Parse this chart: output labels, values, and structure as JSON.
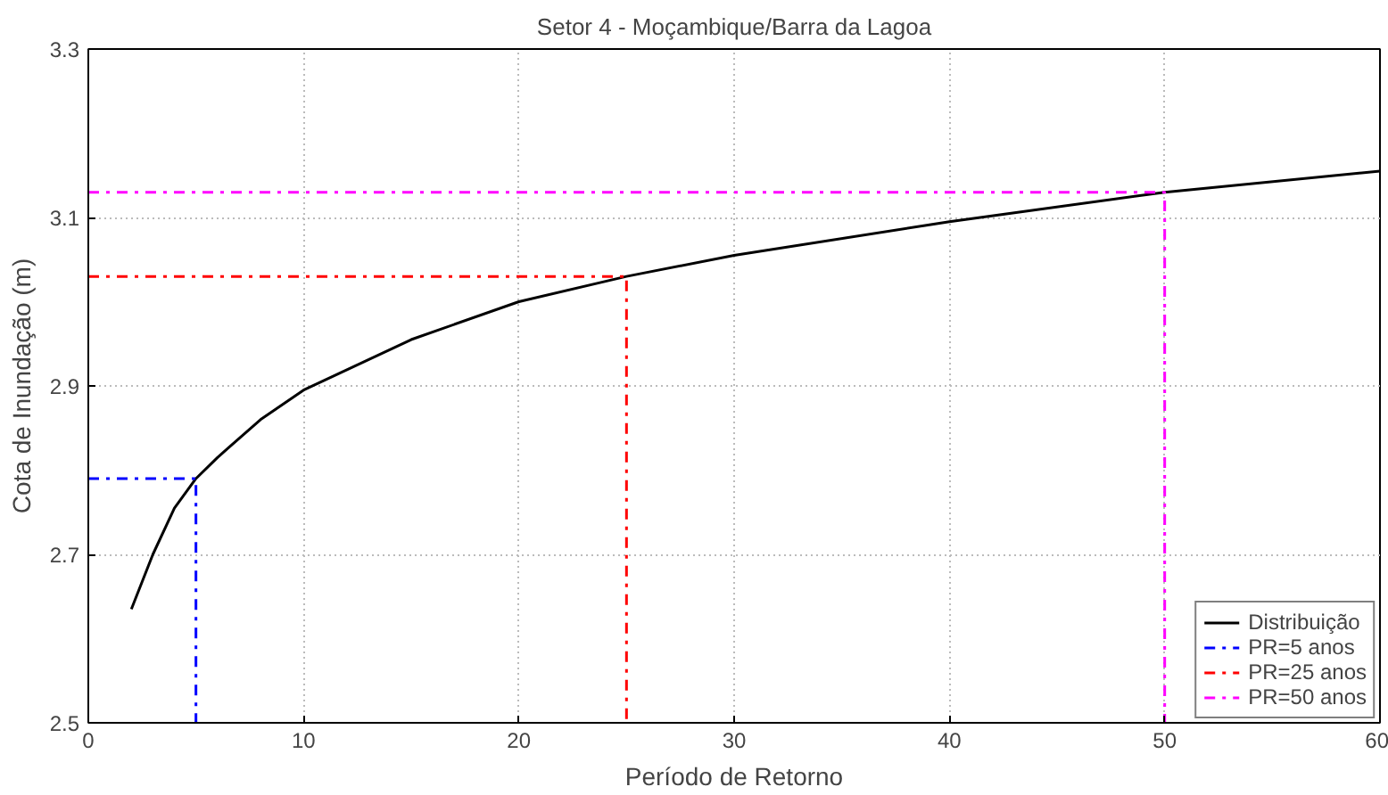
{
  "chart_data": {
    "type": "line",
    "title": "Setor 4 - Moçambique/Barra da Lagoa",
    "xlabel": "Período de Retorno",
    "ylabel": "Cota de Inundação (m)",
    "xlim": [
      0,
      60
    ],
    "xticks": [
      0,
      10,
      20,
      30,
      40,
      50,
      60
    ],
    "ylim": [
      2.5,
      3.3
    ],
    "yticks": [
      2.5,
      2.7,
      2.9,
      3.1,
      3.3
    ],
    "grid": true,
    "legend": "bottom right",
    "series": [
      {
        "name": "Distribuição",
        "color": "#000000",
        "line_style": "solid",
        "x": [
          2,
          3,
          4,
          5,
          6,
          8,
          10,
          15,
          20,
          25,
          30,
          40,
          50,
          60
        ],
        "values": [
          2.635,
          2.7,
          2.755,
          2.79,
          2.815,
          2.86,
          2.895,
          2.955,
          3.0,
          3.03,
          3.055,
          3.095,
          3.13,
          3.155
        ]
      },
      {
        "name": "PR=5 anos",
        "color": "#0000ff",
        "line_style": "dashed",
        "x": [
          0,
          5,
          5
        ],
        "values": [
          2.79,
          2.79,
          2.5
        ]
      },
      {
        "name": "PR=25 anos",
        "color": "#ff0000",
        "line_style": "dashed",
        "x": [
          0,
          25,
          25
        ],
        "values": [
          3.03,
          3.03,
          2.5
        ]
      },
      {
        "name": "PR=50 anos",
        "color": "#ff00ff",
        "line_style": "dashed",
        "x": [
          0,
          50,
          50
        ],
        "values": [
          3.13,
          3.13,
          2.5
        ]
      }
    ]
  }
}
